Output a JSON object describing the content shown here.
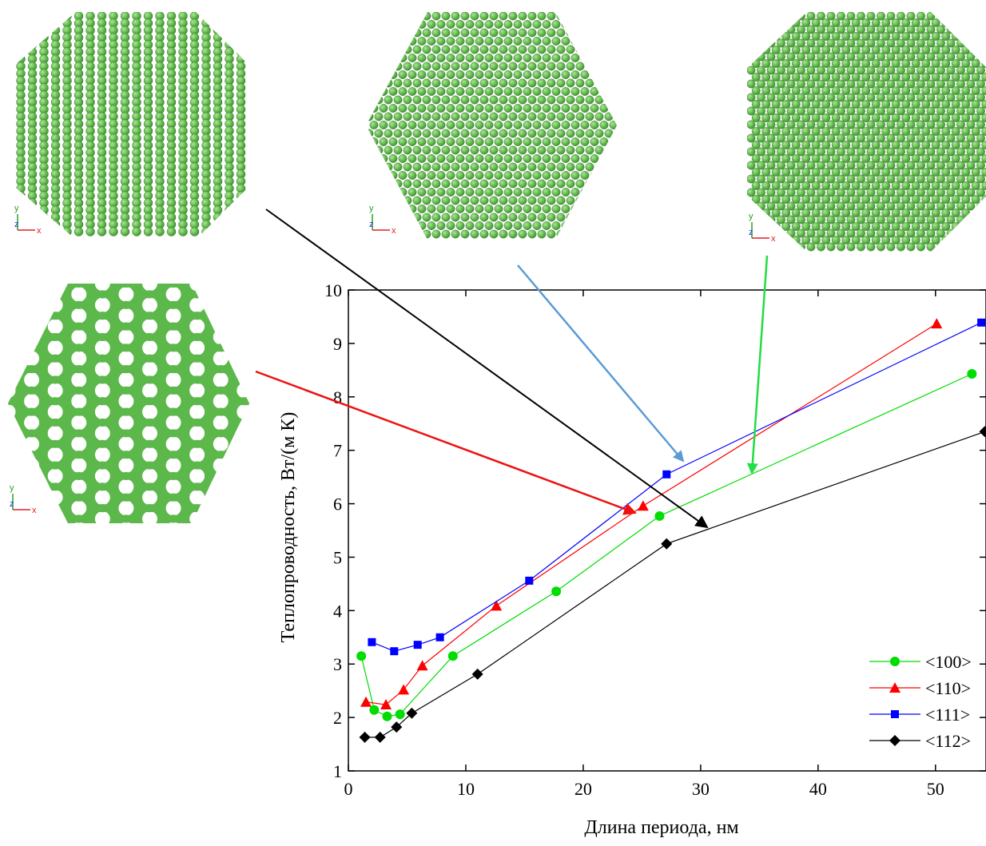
{
  "chart_data": {
    "type": "line",
    "x_label": "Длина периода, нм",
    "y_label": "Теплопроводность, Вт/(м К)",
    "xlim": [
      0,
      54.3
    ],
    "ylim": [
      1,
      10
    ],
    "xticks": [
      0,
      10,
      20,
      30,
      40,
      50
    ],
    "yticks": [
      1,
      2,
      3,
      4,
      5,
      6,
      7,
      8,
      9,
      10
    ],
    "legend": "lower right",
    "series": [
      {
        "name": "<100>",
        "color": "#00dd00",
        "marker": "circle",
        "x": [
          1.1,
          2.2,
          3.3,
          4.4,
          8.9,
          17.7,
          26.5,
          53.1
        ],
        "values": [
          3.15,
          2.14,
          2.02,
          2.06,
          3.15,
          4.36,
          5.77,
          8.43
        ]
      },
      {
        "name": "<110>",
        "color": "#ff0000",
        "marker": "triangle",
        "x": [
          1.5,
          3.2,
          4.7,
          6.3,
          12.6,
          25.1,
          50.1
        ],
        "values": [
          2.29,
          2.24,
          2.52,
          2.97,
          4.09,
          5.96,
          9.37
        ]
      },
      {
        "name": "<111>",
        "color": "#0000ff",
        "marker": "square",
        "x": [
          2.0,
          3.9,
          5.9,
          7.8,
          15.4,
          27.1,
          53.9
        ],
        "values": [
          3.41,
          3.24,
          3.36,
          3.5,
          4.56,
          6.55,
          9.39
        ]
      },
      {
        "name": "<112>",
        "color": "#000000",
        "marker": "diamond",
        "x": [
          1.4,
          2.7,
          4.1,
          5.4,
          11.0,
          27.1,
          54.2
        ],
        "values": [
          1.63,
          1.63,
          1.82,
          2.08,
          2.81,
          5.25,
          7.35
        ]
      }
    ]
  },
  "insets": [
    {
      "axes": [
        "y",
        "z",
        "x"
      ]
    },
    {
      "axes": [
        "y",
        "z",
        "x"
      ]
    },
    {
      "axes": [
        "y",
        "z",
        "x"
      ]
    },
    {
      "axes": [
        "y",
        "z",
        "x"
      ]
    }
  ]
}
